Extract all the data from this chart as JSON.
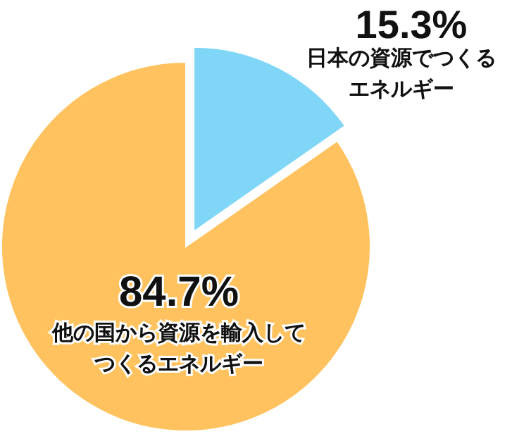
{
  "chart_data": {
    "type": "pie",
    "categories": [
      "日本の資源でつくるエネルギー",
      "他の国から資源を輸入してつくるエネルギー"
    ],
    "values": [
      15.3,
      84.7
    ],
    "colors": [
      "#7fd6f7",
      "#ffc25e"
    ],
    "value_labels": [
      "15.3%",
      "84.7%"
    ]
  }
}
